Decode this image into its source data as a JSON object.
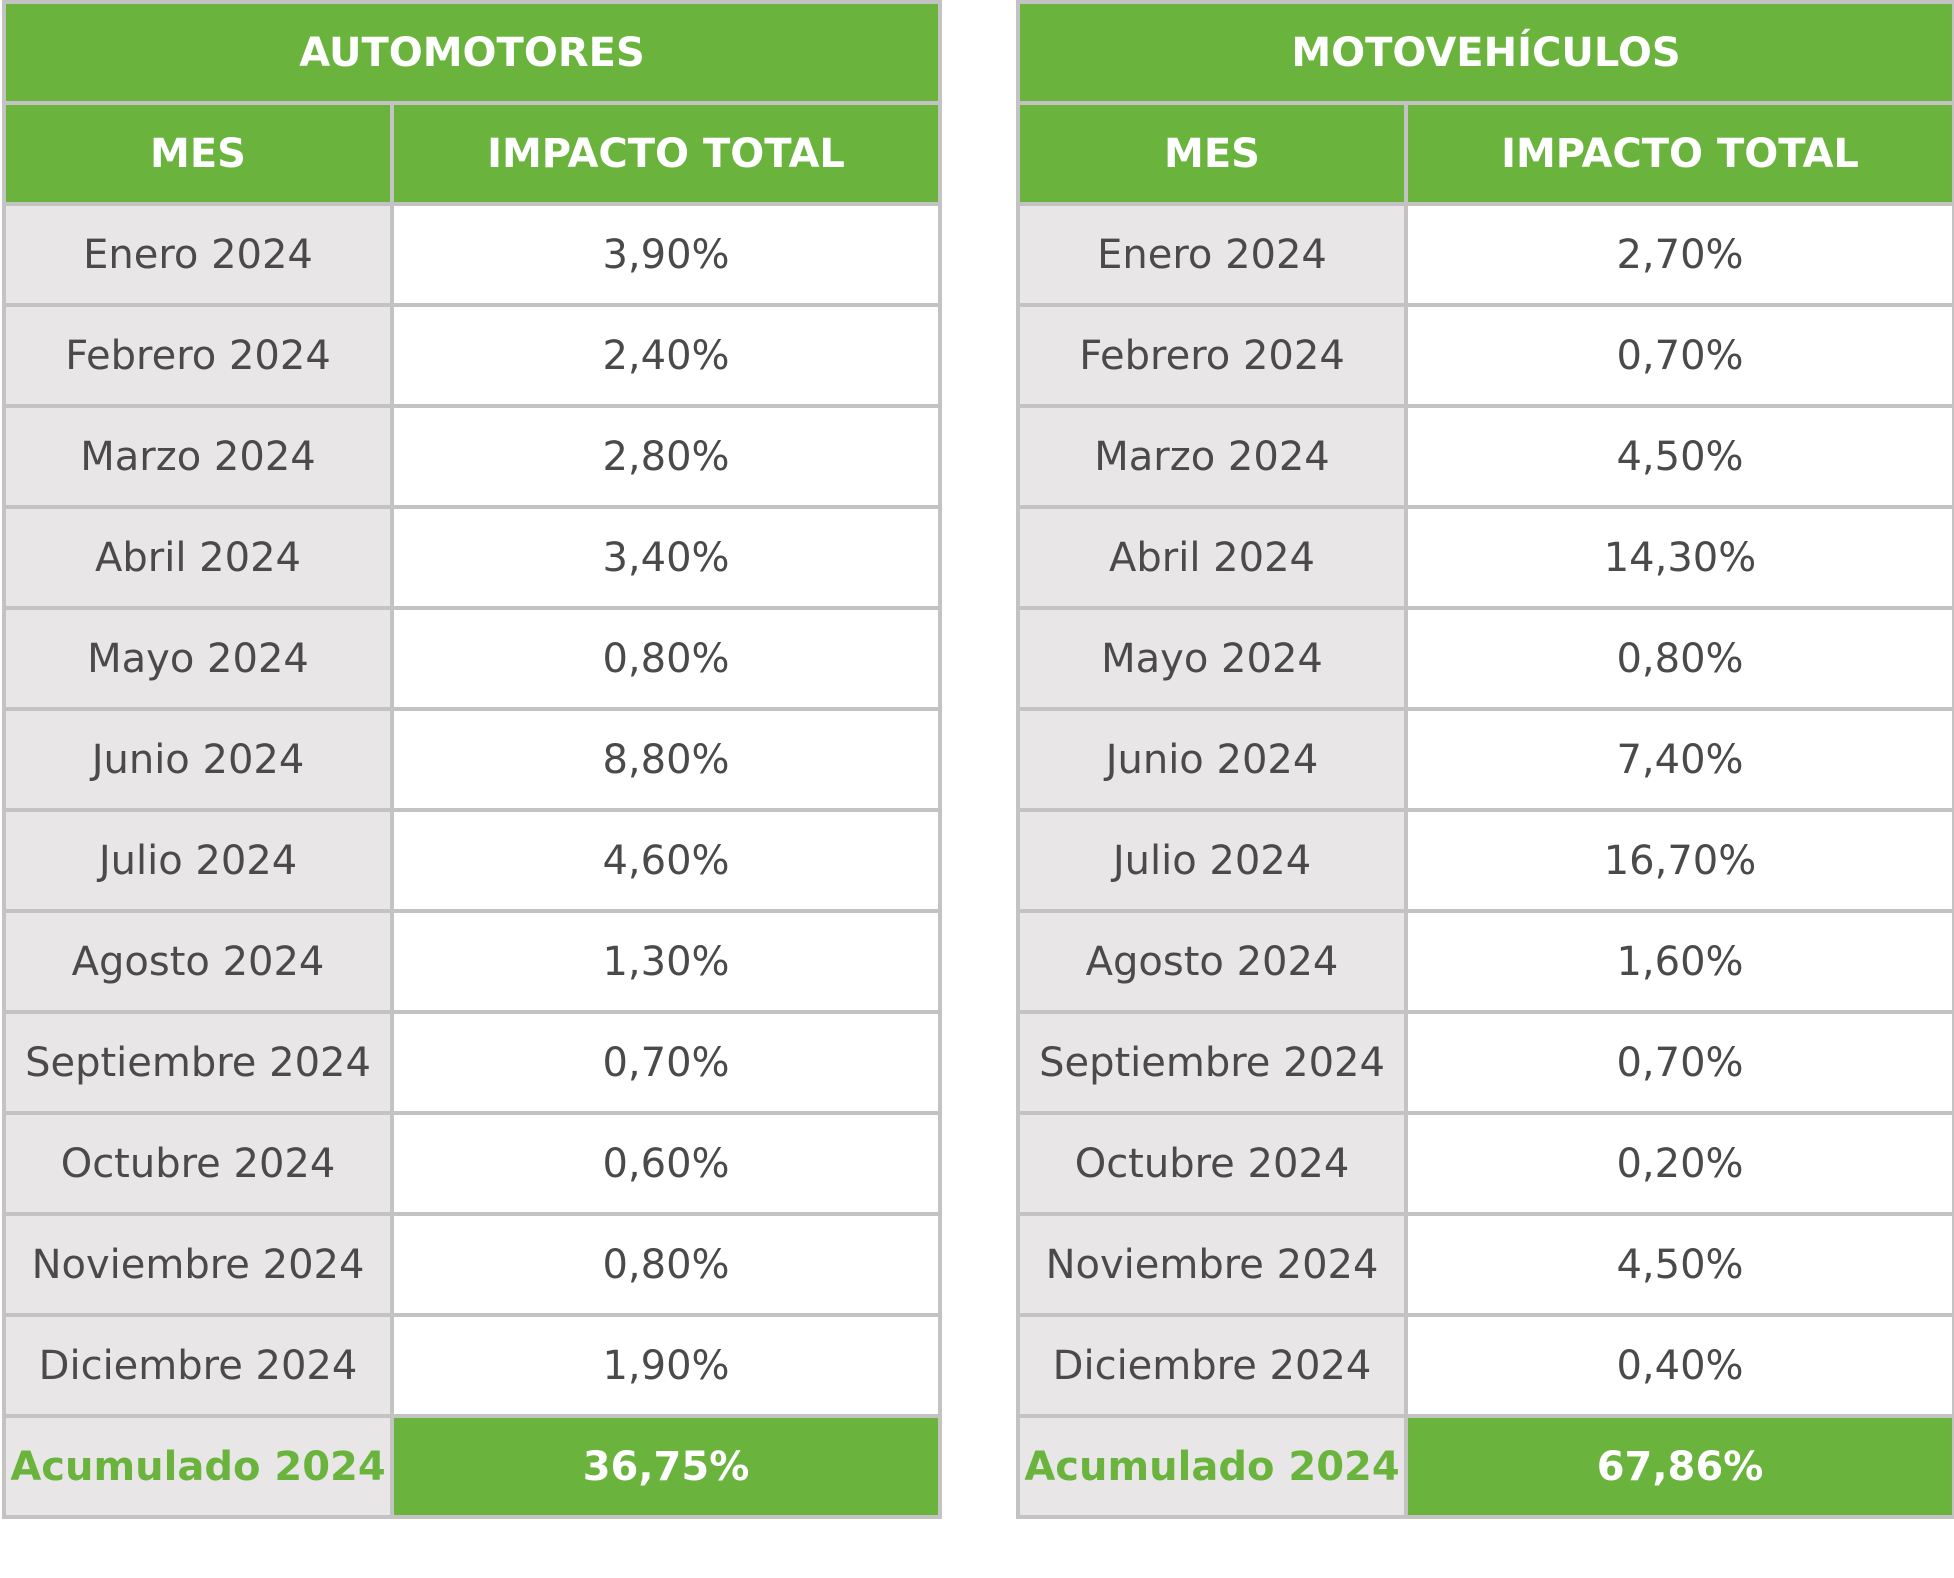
{
  "automotores": {
    "title": "AUTOMOTORES",
    "col_mes": "MES",
    "col_impacto": "IMPACTO TOTAL",
    "rows": [
      {
        "mes": "Enero 2024",
        "valor": "3,90%"
      },
      {
        "mes": "Febrero 2024",
        "valor": "2,40%"
      },
      {
        "mes": "Marzo 2024",
        "valor": "2,80%"
      },
      {
        "mes": "Abril 2024",
        "valor": "3,40%"
      },
      {
        "mes": "Mayo 2024",
        "valor": "0,80%"
      },
      {
        "mes": "Junio 2024",
        "valor": "8,80%"
      },
      {
        "mes": "Julio 2024",
        "valor": "4,60%"
      },
      {
        "mes": "Agosto 2024",
        "valor": "1,30%"
      },
      {
        "mes": "Septiembre 2024",
        "valor": "0,70%"
      },
      {
        "mes": "Octubre 2024",
        "valor": "0,60%"
      },
      {
        "mes": "Noviembre 2024",
        "valor": "0,80%"
      },
      {
        "mes": "Diciembre 2024",
        "valor": "1,90%"
      }
    ],
    "total_label": "Acumulado 2024",
    "total_value": "36,75%"
  },
  "motovehiculos": {
    "title": "MOTOVEHÍCULOS",
    "col_mes": "MES",
    "col_impacto": "IMPACTO TOTAL",
    "rows": [
      {
        "mes": "Enero 2024",
        "valor": "2,70%"
      },
      {
        "mes": "Febrero 2024",
        "valor": "0,70%"
      },
      {
        "mes": "Marzo 2024",
        "valor": "4,50%"
      },
      {
        "mes": "Abril 2024",
        "valor": "14,30%"
      },
      {
        "mes": "Mayo 2024",
        "valor": "0,80%"
      },
      {
        "mes": "Junio 2024",
        "valor": "7,40%"
      },
      {
        "mes": "Julio 2024",
        "valor": "16,70%"
      },
      {
        "mes": "Agosto 2024",
        "valor": "1,60%"
      },
      {
        "mes": "Septiembre 2024",
        "valor": "0,70%"
      },
      {
        "mes": "Octubre 2024",
        "valor": "0,20%"
      },
      {
        "mes": "Noviembre 2024",
        "valor": "4,50%"
      },
      {
        "mes": "Diciembre 2024",
        "valor": "0,40%"
      }
    ],
    "total_label": "Acumulado 2024",
    "total_value": "67,86%"
  },
  "colors": {
    "header_green": "#6ab43e",
    "month_cell_gray": "#e8e6e7",
    "border_gray": "#c3c3c3",
    "text_gray": "#4a4a4a"
  }
}
